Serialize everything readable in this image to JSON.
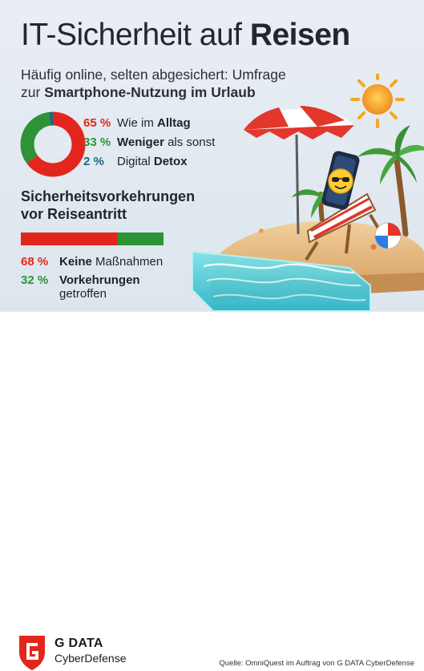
{
  "header": {
    "title_pre": "IT-Sicherheit auf",
    "title_bold": "Reisen",
    "subtitle_line1": "Häufig online, selten abgesichert: Umfrage",
    "subtitle_pre": "zur",
    "subtitle_bold": "Smartphone-Nutzung im Urlaub"
  },
  "usage": {
    "items": [
      {
        "pct_label": "65 %",
        "text": "Wie im",
        "bold": "Alltag",
        "suffix": "",
        "color": "#e3261d"
      },
      {
        "pct_label": "33 %",
        "text": "",
        "bold": "Weniger",
        "suffix": "als sonst",
        "color": "#2e9336"
      },
      {
        "pct_label": "2 %",
        "text": "Digital",
        "bold": "Detox",
        "suffix": "",
        "color": "#1e6a7d"
      }
    ]
  },
  "precautions": {
    "title_bold": "Sicherheitsvorkehrungen",
    "title_sub": "vor Reiseantritt",
    "items": [
      {
        "pct_label": "68 %",
        "bold": "Keine",
        "suffix": "Maßnahmen",
        "line2": "",
        "color": "#e3261d"
      },
      {
        "pct_label": "32 %",
        "bold": "Vorkehrungen",
        "suffix": "",
        "line2": "getroffen",
        "color": "#2e9336"
      }
    ]
  },
  "chart_data": [
    {
      "type": "pie",
      "categories": [
        "Wie im Alltag",
        "Weniger als sonst",
        "Digital Detox"
      ],
      "values": [
        65,
        33,
        2
      ],
      "colors": [
        "#e3261d",
        "#2e9336",
        "#1e6a7d"
      ]
    },
    {
      "type": "bar",
      "categories": [
        "Keine Maßnahmen",
        "Vorkehrungen getroffen"
      ],
      "values": [
        68,
        32
      ],
      "colors": [
        "#e3261d",
        "#2e9336"
      ]
    }
  ],
  "footer": {
    "brand_name": "G DATA",
    "brand_sub": "CyberDefense",
    "source": "Quelle: OmniQuest im Auftrag von G DATA CyberDefense"
  }
}
